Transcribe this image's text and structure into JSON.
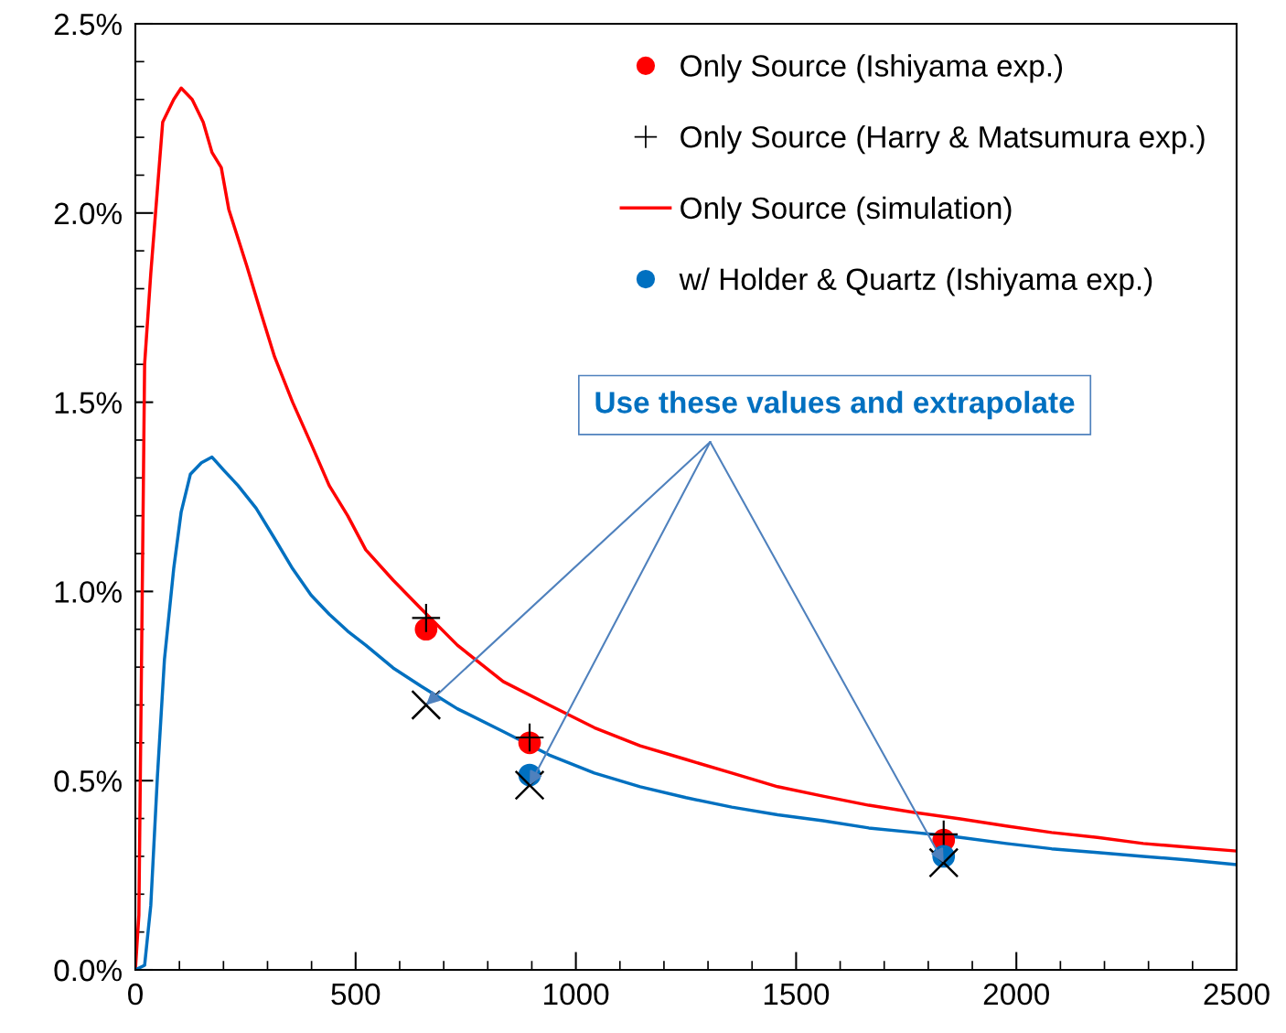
{
  "chart_data": {
    "type": "line",
    "xlim": [
      0,
      2500
    ],
    "xticks": [
      0,
      500,
      1000,
      1500,
      2000,
      2500
    ],
    "ylim": [
      0,
      2.5
    ],
    "yticks": [
      {
        "value": 0,
        "label": "0.0%"
      },
      {
        "value": 0.5,
        "label": "0.5%"
      },
      {
        "value": 1.0,
        "label": "1.0%"
      },
      {
        "value": 1.5,
        "label": "1.5%"
      },
      {
        "value": 2.0,
        "label": "2.0%"
      },
      {
        "value": 2.5,
        "label": "2.5%"
      }
    ],
    "grid": false,
    "legend": "top right",
    "series": [
      {
        "name": "Only Source (Ishiyama exp.)",
        "type": "scatter",
        "marker": "circle",
        "color": "#ff0000",
        "x": [
          660,
          895,
          1835
        ],
        "values": [
          0.9,
          0.6,
          0.343
        ]
      },
      {
        "name": "Only Source (Harry & Matsumura exp.)",
        "type": "scatter",
        "color": "#000000",
        "x": [
          660,
          895,
          1835
        ],
        "values": [
          0.93,
          0.614,
          0.358
        ]
      },
      {
        "name": "Only Source (simulation)",
        "color": "#ff0000",
        "x": [
          0,
          8,
          21,
          35,
          62,
          87,
          104,
          129,
          154,
          174,
          195,
          212,
          253,
          284,
          316,
          357,
          399,
          440,
          482,
          523,
          585,
          648,
          731,
          835,
          939,
          1042,
          1146,
          1250,
          1354,
          1458,
          1561,
          1665,
          1769,
          1873,
          1977,
          2080,
          2184,
          2288,
          2392,
          2500
        ],
        "values": [
          0,
          0.145,
          1.6,
          1.84,
          2.24,
          2.3,
          2.33,
          2.3,
          2.24,
          2.16,
          2.12,
          2.01,
          1.86,
          1.74,
          1.62,
          1.5,
          1.39,
          1.28,
          1.2,
          1.11,
          1.03,
          0.955,
          0.858,
          0.762,
          0.7,
          0.64,
          0.592,
          0.556,
          0.52,
          0.484,
          0.459,
          0.435,
          0.416,
          0.399,
          0.38,
          0.363,
          0.35,
          0.334,
          0.324,
          0.314
        ]
      },
      {
        "name": "w/ Holder & Quartz (Ishiyama exp.)",
        "type": "scatter",
        "marker": "circle",
        "color": "#0070c0",
        "x": [
          895,
          1835
        ],
        "values": [
          0.515,
          0.3
        ]
      },
      {
        "color": "#0070c0",
        "x": [
          0,
          21,
          35,
          50,
          66,
          87,
          104,
          125,
          150,
          174,
          201,
          233,
          274,
          316,
          357,
          399,
          440,
          482,
          523,
          585,
          648,
          731,
          835,
          939,
          1042,
          1146,
          1250,
          1354,
          1458,
          1561,
          1665,
          1769,
          1873,
          1977,
          2080,
          2184,
          2288,
          2392,
          2500
        ],
        "values": [
          0,
          0.012,
          0.17,
          0.51,
          0.82,
          1.06,
          1.21,
          1.31,
          1.34,
          1.355,
          1.32,
          1.28,
          1.22,
          1.14,
          1.06,
          0.99,
          0.94,
          0.895,
          0.858,
          0.798,
          0.75,
          0.69,
          0.63,
          0.568,
          0.52,
          0.484,
          0.455,
          0.43,
          0.41,
          0.394,
          0.375,
          0.363,
          0.35,
          0.334,
          0.32,
          0.31,
          0.3,
          0.29,
          0.278
        ]
      },
      {
        "type": "scatter",
        "marker": "cross",
        "color": "#000000",
        "x": [
          660,
          895,
          1835
        ],
        "values": [
          0.7,
          0.488,
          0.283
        ]
      }
    ],
    "annotations": [
      {
        "text": "Use these values and extrapolate",
        "x": 660,
        "y": 0.7
      }
    ]
  }
}
